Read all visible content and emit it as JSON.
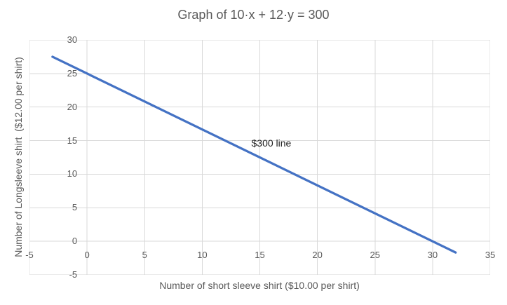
{
  "chart_data": {
    "type": "line",
    "title": "Graph of 10·x + 12·y = 300",
    "xlabel": "Number of short sleeve shirt ($10.00 per shirt)",
    "ylabel": "Number of Longsleeve shirt  ($12.00 per shirt)",
    "equation": "10·x + 12·y = 300",
    "xlim": [
      -5,
      35
    ],
    "ylim": [
      -5,
      30
    ],
    "x_ticks": [
      -5,
      0,
      5,
      10,
      15,
      20,
      25,
      30,
      35
    ],
    "y_ticks": [
      -5,
      0,
      5,
      10,
      15,
      20,
      25,
      30
    ],
    "grid": true,
    "legend": false,
    "axis_cross": {
      "x": 0,
      "y": 0
    },
    "series": [
      {
        "name": "$300 line",
        "color": "#4472C4",
        "points": [
          {
            "x": -3,
            "y": 27.5
          },
          {
            "x": 32,
            "y": -1.67
          }
        ]
      }
    ],
    "annotations": [
      {
        "text": "$300 line",
        "x": 16,
        "y": 14.6
      }
    ]
  },
  "colors": {
    "line": "#4472C4",
    "grid": "#D9D9D9",
    "text": "#595959",
    "annotation": "#1f1f1f",
    "background": "#FFFFFF"
  }
}
